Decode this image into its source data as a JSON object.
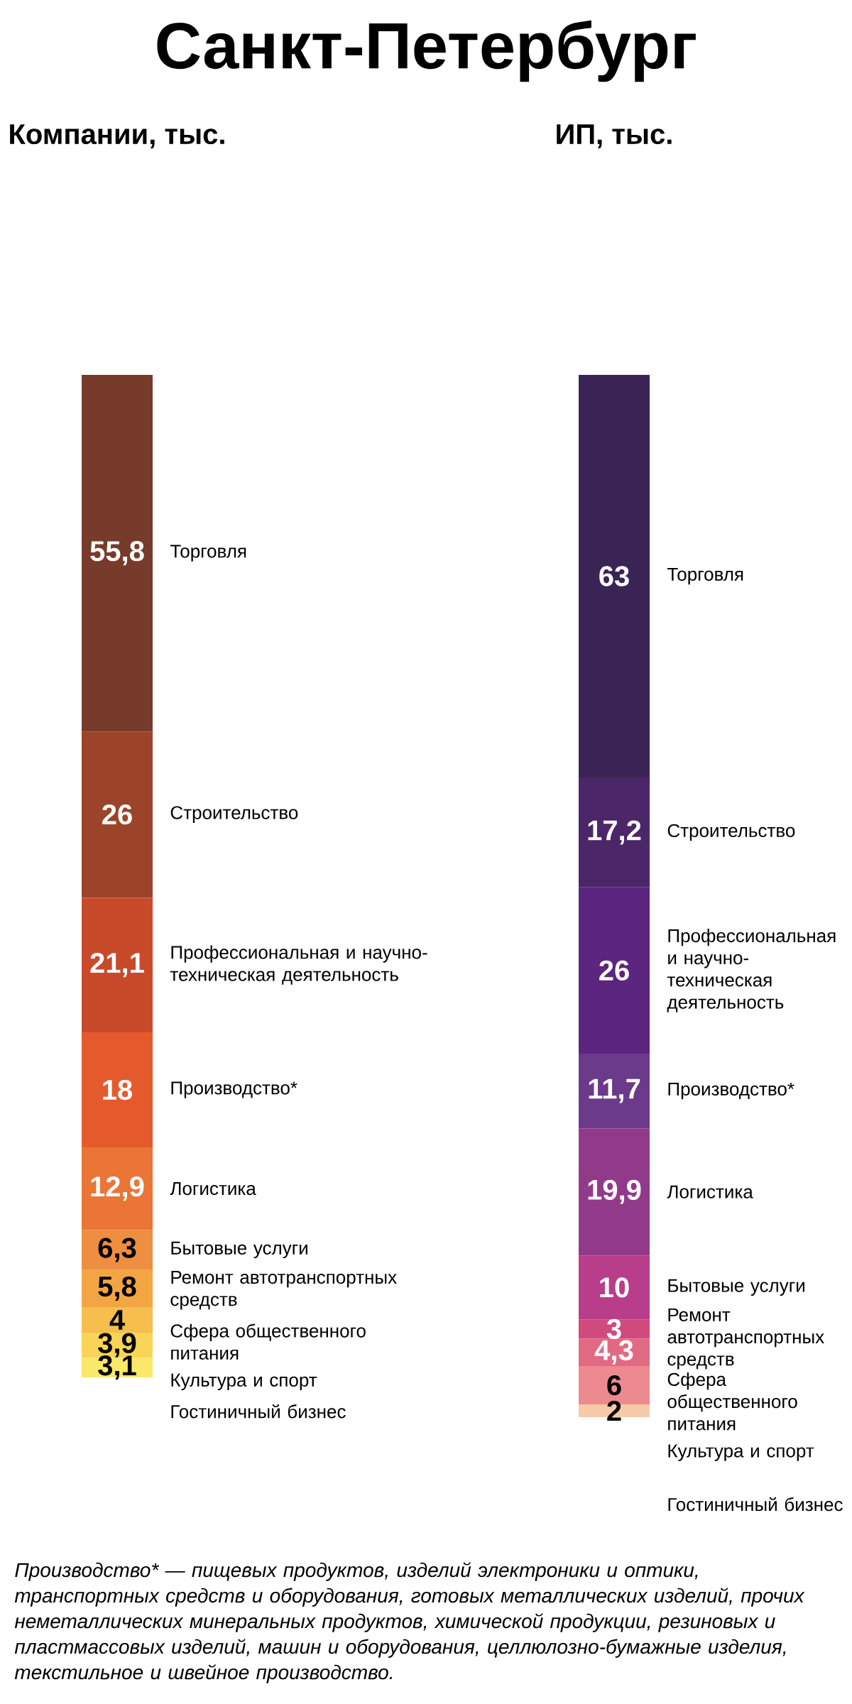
{
  "chart_data": [
    {
      "type": "bar",
      "title": "Санкт-Петербург",
      "subtitle": "Компании, тыс.",
      "stacked": true,
      "categories": [
        null
      ],
      "series": [
        {
          "name": "Гостиничный бизнес",
          "color": "#fbe86a",
          "values": [
            3.1
          ],
          "value_labels": [
            "3,1"
          ]
        },
        {
          "name": "Культура и спорт",
          "color": "#f8d457",
          "values": [
            3.9
          ],
          "value_labels": [
            "3,9"
          ]
        },
        {
          "name": "Сфера общественного питания",
          "color": "#f6be4d",
          "values": [
            4
          ],
          "value_labels": [
            "4"
          ]
        },
        {
          "name": "Ремонт автотранспортных средств",
          "color": "#f3a544",
          "values": [
            5.8
          ],
          "value_labels": [
            "5,8"
          ]
        },
        {
          "name": "Бытовые услуги",
          "color": "#ee8e40",
          "values": [
            6.3
          ],
          "value_labels": [
            "6,3"
          ]
        },
        {
          "name": "Логистика",
          "color": "#ea7536",
          "values": [
            12.9
          ],
          "value_labels": [
            "12,9"
          ]
        },
        {
          "name": "Производство*",
          "color": "#e55a2c",
          "values": [
            18
          ],
          "value_labels": [
            "18"
          ]
        },
        {
          "name": "Профессиональная и научно-техническая деятельность",
          "color": "#c94a2b",
          "values": [
            21.1
          ],
          "value_labels": [
            "21,1"
          ]
        },
        {
          "name": "Строительство",
          "color": "#9c4429",
          "values": [
            26
          ],
          "value_labels": [
            "26"
          ]
        },
        {
          "name": "Торговля",
          "color": "#773b2b",
          "values": [
            55.8
          ],
          "value_labels": [
            "55,8"
          ]
        }
      ],
      "annotations": [
        "Производство* — пищевых продуктов, изделий электроники и оптики, транспортных средств и оборудования, готовых металлических изделий,  прочих неметаллических минеральных продуктов, химической продукции, резиновых и пластмассовых изделий, машин и оборудования,  целлюлозно-бумажные изделия, текстильное и швейное производство."
      ]
    },
    {
      "type": "bar",
      "subtitle": "ИП, тыс.",
      "stacked": true,
      "categories": [
        null
      ],
      "series": [
        {
          "name": "Гостиничный бизнес",
          "color": "#f6c9a8",
          "values": [
            2
          ],
          "value_labels": [
            "2"
          ]
        },
        {
          "name": "Культура и спорт",
          "color": "#ec8a90",
          "values": [
            6
          ],
          "value_labels": [
            "6"
          ]
        },
        {
          "name": "Сфера общественного питания",
          "color": "#e06a84",
          "values": [
            4.3
          ],
          "value_labels": [
            "4,3"
          ]
        },
        {
          "name": "Ремонт автотранспортных средств",
          "color": "#d14a7e",
          "values": [
            3
          ],
          "value_labels": [
            "3"
          ]
        },
        {
          "name": "Бытовые услуги",
          "color": "#b83d8a",
          "values": [
            10
          ],
          "value_labels": [
            "10"
          ]
        },
        {
          "name": "Логистика",
          "color": "#913a8a",
          "values": [
            19.9
          ],
          "value_labels": [
            "19,9"
          ]
        },
        {
          "name": "Производство*",
          "color": "#6c3a8a",
          "values": [
            11.7
          ],
          "value_labels": [
            "11,7"
          ]
        },
        {
          "name": "Профессиональная и научно-техническая деятельность",
          "color": "#5b2580",
          "values": [
            26
          ],
          "value_labels": [
            "26"
          ]
        },
        {
          "name": "Строительство",
          "color": "#4b2668",
          "values": [
            17.2
          ],
          "value_labels": [
            "17,2"
          ]
        },
        {
          "name": "Торговля",
          "color": "#3a2455",
          "values": [
            63
          ],
          "value_labels": [
            "63"
          ]
        }
      ]
    }
  ]
}
